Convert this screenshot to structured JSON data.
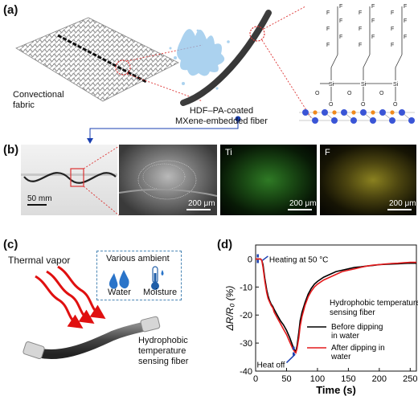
{
  "panels": {
    "a": {
      "label": "(a)",
      "fabric_label": "Convectional\nfabric",
      "fiber_label": "HDF–PA-coated\nMXene-embedded fiber"
    },
    "b": {
      "label": "(b)",
      "photo_scale": "50 mm",
      "sem_scale": "200 μm",
      "ti_label": "Ti",
      "ti_scale": "200 μm",
      "f_label": "F",
      "f_scale": "200 μm"
    },
    "c": {
      "label": "(c)",
      "thermal_vapor": "Thermal vapor",
      "ambient_title": "Various ambient",
      "water": "Water",
      "moisture": "Moisture",
      "fiber_label": "Hydrophobic\ntemperature\nsensing fiber"
    },
    "d": {
      "label": "(d)"
    }
  },
  "chart_data": {
    "type": "line",
    "xlabel": "Time (s)",
    "ylabel": "ΔR/R₀ (%)",
    "xlim": [
      0,
      260
    ],
    "ylim": [
      -40,
      5
    ],
    "xticks": [
      0,
      50,
      100,
      150,
      200,
      250
    ],
    "yticks": [
      0,
      -10,
      -20,
      -30,
      -40
    ],
    "legend_title": "Hydrophobic temperature\nsensing fiber",
    "annotations": [
      {
        "text": "Heating  at 50 °C",
        "x": 10,
        "y": 0
      },
      {
        "text": "Heat  off",
        "x": 68,
        "y": -33
      }
    ],
    "series": [
      {
        "name": "Before dipping\nin water",
        "color": "#000000",
        "x": [
          0,
          5,
          8,
          10,
          12,
          15,
          18,
          20,
          22,
          25,
          28,
          30,
          35,
          40,
          45,
          50,
          55,
          60,
          63,
          65,
          67,
          70,
          72,
          75,
          80,
          85,
          90,
          95,
          100,
          110,
          120,
          130,
          140,
          150,
          160,
          170,
          180,
          190,
          200,
          210,
          220,
          230,
          240,
          250,
          260
        ],
        "y": [
          0,
          0,
          0,
          -0.5,
          -2,
          -7,
          -11,
          -13,
          -14.5,
          -16,
          -17,
          -18,
          -20,
          -22,
          -23.5,
          -25.5,
          -28,
          -31,
          -32.5,
          -33,
          -31,
          -26,
          -22,
          -19,
          -15.5,
          -12.5,
          -10.5,
          -9,
          -8,
          -6.5,
          -5.5,
          -4.5,
          -4,
          -3.5,
          -3,
          -2.8,
          -2.5,
          -2.3,
          -2,
          -1.9,
          -1.8,
          -1.7,
          -1.6,
          -1.5,
          -1.5
        ]
      },
      {
        "name": "After dipping in\nwater",
        "color": "#e41a1c",
        "x": [
          0,
          5,
          8,
          10,
          12,
          15,
          18,
          20,
          22,
          25,
          28,
          30,
          35,
          40,
          45,
          50,
          55,
          60,
          63,
          65,
          67,
          70,
          72,
          75,
          80,
          85,
          90,
          95,
          100,
          110,
          120,
          130,
          140,
          150,
          160,
          170,
          180,
          190,
          200,
          210,
          220,
          230,
          240,
          250,
          260
        ],
        "y": [
          0,
          0,
          0,
          -0.5,
          -3,
          -8,
          -12,
          -14,
          -15,
          -16.5,
          -17.5,
          -19,
          -21,
          -23,
          -25,
          -27,
          -29.5,
          -32,
          -33,
          -33.5,
          -32,
          -28,
          -24,
          -20.5,
          -16.5,
          -13.5,
          -11.5,
          -10,
          -9,
          -7.5,
          -6.5,
          -5.5,
          -4.5,
          -4,
          -3.5,
          -3,
          -2.5,
          -2.2,
          -2,
          -1.8,
          -1.6,
          -1.5,
          -1.3,
          -1.2,
          -1.2
        ]
      }
    ]
  }
}
